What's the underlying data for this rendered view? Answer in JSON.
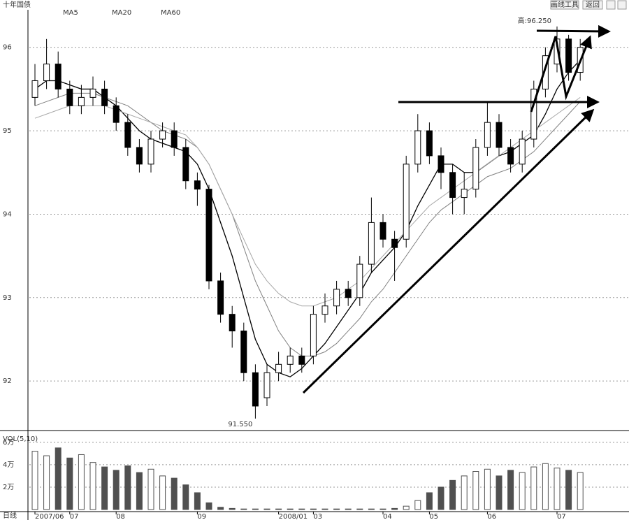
{
  "toolbar": {
    "buttons": [
      "画线工具",
      "返回"
    ]
  },
  "period": "日线",
  "chart_data": [
    {
      "type": "candlestick",
      "title": "十年国债",
      "open": [
        95.4,
        95.6,
        95.8,
        95.5,
        95.3,
        95.4,
        95.5,
        95.3,
        95.1,
        94.8,
        94.6,
        94.9,
        95.0,
        94.8,
        94.4,
        94.3,
        93.2,
        92.8,
        92.6,
        92.1,
        91.8,
        92.1,
        92.2,
        92.3,
        92.3,
        92.8,
        92.9,
        93.1,
        93.0,
        93.4,
        93.9,
        93.7,
        93.7,
        94.6,
        95.0,
        94.7,
        94.5,
        94.2,
        94.3,
        94.8,
        95.1,
        94.8,
        94.6,
        94.9,
        95.5,
        95.8,
        96.1,
        95.7
      ],
      "high": [
        95.8,
        96.1,
        95.95,
        95.6,
        95.55,
        95.65,
        95.6,
        95.4,
        95.2,
        94.9,
        95.0,
        95.1,
        95.1,
        94.9,
        94.5,
        94.35,
        93.3,
        92.9,
        92.7,
        92.2,
        92.2,
        92.35,
        92.4,
        92.4,
        92.9,
        93.05,
        93.2,
        93.2,
        93.5,
        94.2,
        94.0,
        93.8,
        94.7,
        95.2,
        95.1,
        94.8,
        94.6,
        94.5,
        94.9,
        95.35,
        95.2,
        94.9,
        95.0,
        95.6,
        96.0,
        96.25,
        96.15,
        96.1
      ],
      "low": [
        95.3,
        95.5,
        95.4,
        95.2,
        95.2,
        95.3,
        95.2,
        95.0,
        94.7,
        94.5,
        94.5,
        94.8,
        94.7,
        94.3,
        94.1,
        93.1,
        92.7,
        92.4,
        92.0,
        91.55,
        91.7,
        92.0,
        92.1,
        92.1,
        92.2,
        92.7,
        92.8,
        92.9,
        92.9,
        93.3,
        93.6,
        93.2,
        93.6,
        94.5,
        94.6,
        94.3,
        94.0,
        94.0,
        94.2,
        94.7,
        94.7,
        94.5,
        94.5,
        94.8,
        95.4,
        95.7,
        95.6,
        95.6
      ],
      "close": [
        95.6,
        95.8,
        95.5,
        95.3,
        95.4,
        95.5,
        95.3,
        95.1,
        94.8,
        94.6,
        94.9,
        95.0,
        94.8,
        94.4,
        94.3,
        93.2,
        92.8,
        92.6,
        92.1,
        91.7,
        92.1,
        92.2,
        92.3,
        92.2,
        92.8,
        92.9,
        93.1,
        93.0,
        93.4,
        93.9,
        93.7,
        93.6,
        94.6,
        95.0,
        94.7,
        94.5,
        94.2,
        94.3,
        94.8,
        95.1,
        94.8,
        94.6,
        94.9,
        95.5,
        95.9,
        96.1,
        95.7,
        96.0
      ],
      "series": [
        {
          "name": "MA5",
          "color": "#000000",
          "values": [
            95.5,
            95.6,
            95.6,
            95.55,
            95.5,
            95.5,
            95.4,
            95.3,
            95.15,
            95.0,
            94.9,
            94.85,
            94.8,
            94.75,
            94.6,
            94.3,
            93.9,
            93.5,
            93.0,
            92.5,
            92.2,
            92.1,
            92.05,
            92.15,
            92.3,
            92.45,
            92.65,
            92.85,
            93.05,
            93.3,
            93.45,
            93.6,
            93.8,
            94.1,
            94.35,
            94.6,
            94.6,
            94.5,
            94.5,
            94.6,
            94.7,
            94.75,
            94.85,
            94.95,
            95.2,
            95.5,
            95.7,
            95.85
          ]
        },
        {
          "name": "MA20",
          "color": "#808080",
          "values": [
            95.3,
            95.35,
            95.4,
            95.45,
            95.45,
            95.45,
            95.4,
            95.35,
            95.3,
            95.2,
            95.1,
            95.0,
            94.95,
            94.9,
            94.8,
            94.6,
            94.3,
            94.0,
            93.6,
            93.2,
            92.9,
            92.6,
            92.4,
            92.3,
            92.3,
            92.35,
            92.45,
            92.6,
            92.75,
            92.95,
            93.1,
            93.3,
            93.5,
            93.7,
            93.9,
            94.05,
            94.15,
            94.25,
            94.35,
            94.45,
            94.5,
            94.55,
            94.65,
            94.75,
            94.9,
            95.05,
            95.2,
            95.35
          ]
        },
        {
          "name": "MA60",
          "color": "#a8a8a8",
          "values": [
            95.15,
            95.2,
            95.25,
            95.3,
            95.3,
            95.3,
            95.3,
            95.25,
            95.2,
            95.15,
            95.1,
            95.05,
            95.0,
            94.95,
            94.8,
            94.6,
            94.3,
            94.0,
            93.7,
            93.4,
            93.2,
            93.05,
            92.95,
            92.9,
            92.9,
            92.95,
            93.0,
            93.1,
            93.2,
            93.35,
            93.5,
            93.65,
            93.8,
            93.95,
            94.1,
            94.2,
            94.3,
            94.4,
            94.5,
            94.6,
            94.7,
            94.8,
            94.9,
            95.0,
            95.1,
            95.2,
            95.3,
            95.4
          ]
        }
      ],
      "annotations": [
        "高:96.250",
        "91.550"
      ],
      "ylim": [
        91.44,
        96.4
      ],
      "yticks": [
        92,
        93,
        94,
        95,
        96
      ],
      "grid": true
    },
    {
      "type": "bar",
      "title": "VOL(5,10)",
      "categories": [
        "2007/06",
        null,
        null,
        "07",
        null,
        null,
        null,
        "08",
        null,
        null,
        null,
        null,
        null,
        null,
        "09",
        null,
        null,
        null,
        null,
        null,
        null,
        "2008/01",
        null,
        null,
        "03",
        null,
        null,
        null,
        null,
        null,
        "04",
        null,
        null,
        null,
        "05",
        null,
        null,
        null,
        null,
        "06",
        null,
        null,
        null,
        null,
        null,
        "07",
        null,
        null
      ],
      "values": [
        5.2,
        4.8,
        5.5,
        4.6,
        4.9,
        4.2,
        3.8,
        3.5,
        3.9,
        3.3,
        3.6,
        3.0,
        2.8,
        2.2,
        1.5,
        0.6,
        0.2,
        0.1,
        0.05,
        0.05,
        0.05,
        0.05,
        0.05,
        0.05,
        0.05,
        0.05,
        0.05,
        0.05,
        0.05,
        0.05,
        0.05,
        0.1,
        0.3,
        0.8,
        1.5,
        2.0,
        2.6,
        3.0,
        3.4,
        3.6,
        3.0,
        3.5,
        3.3,
        3.8,
        4.1,
        3.7,
        3.5,
        3.3
      ],
      "color": "#505050",
      "ylim": [
        0,
        6.8
      ],
      "yticks": [
        {
          "value": 2,
          "label": "2万"
        },
        {
          "value": 4,
          "label": "4万"
        },
        {
          "value": 6,
          "label": "6万"
        }
      ],
      "grid": true
    }
  ]
}
